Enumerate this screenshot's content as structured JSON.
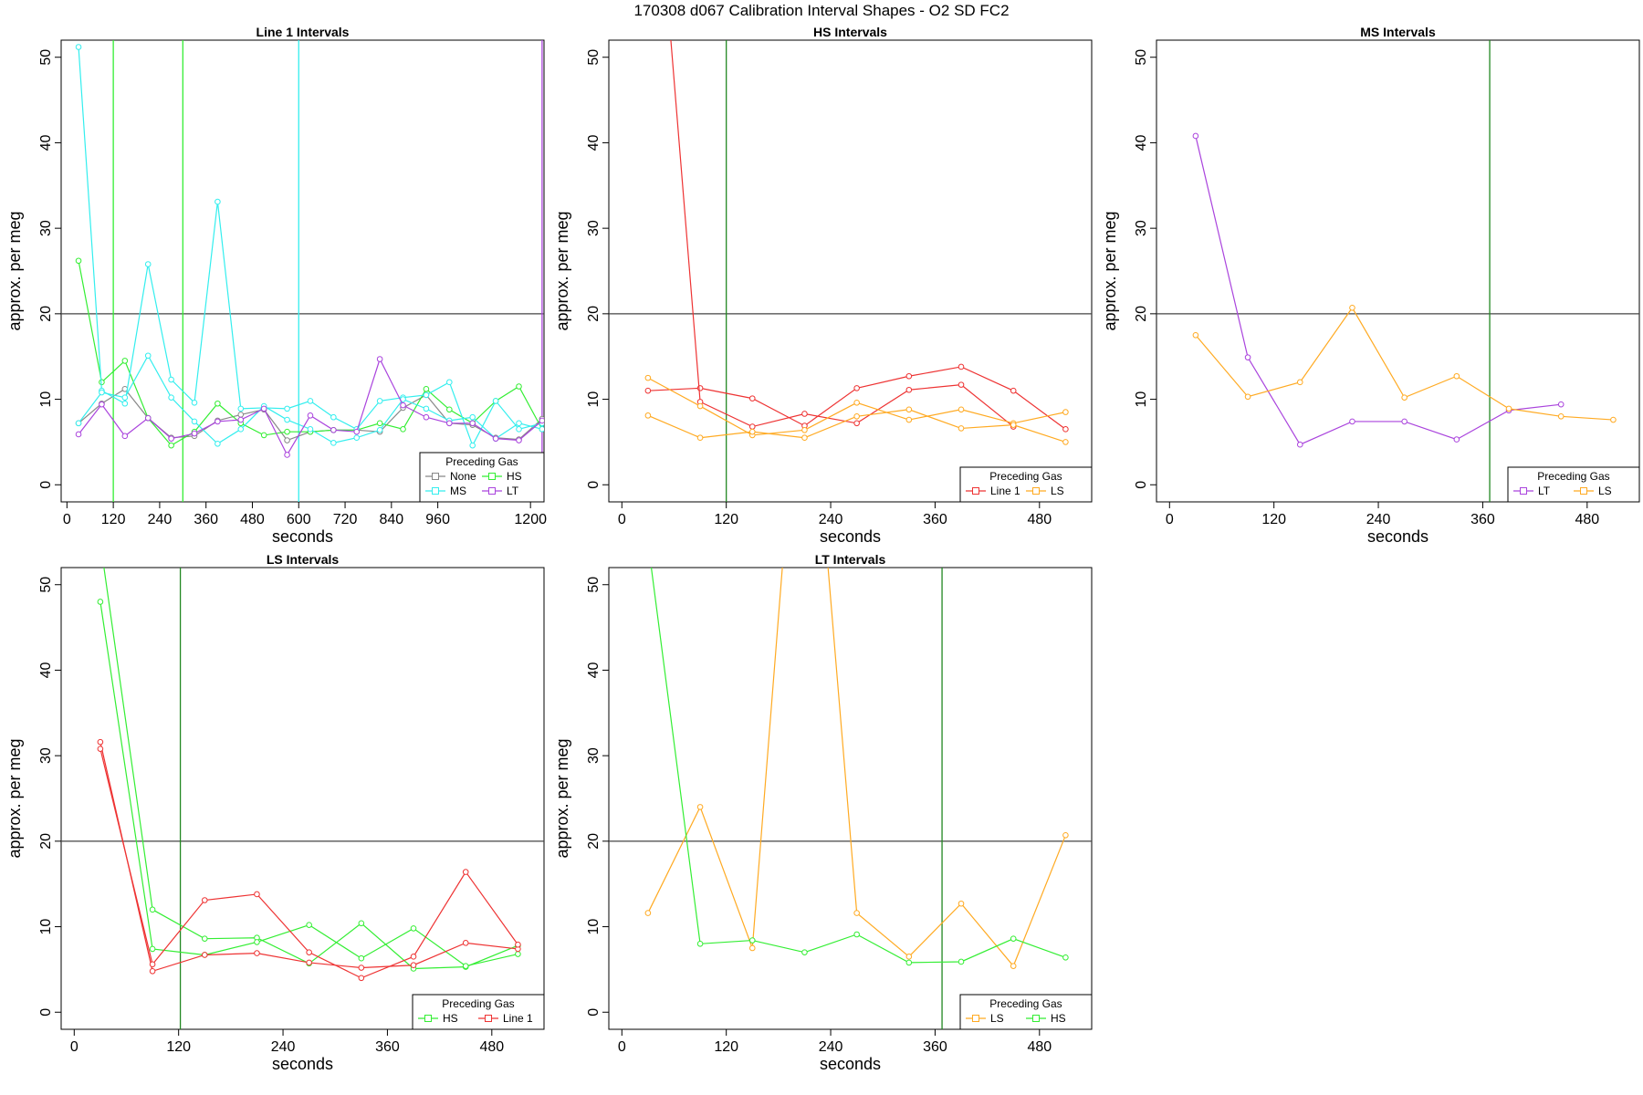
{
  "page_title": "170308   d067   Calibration Interval Shapes - O2 SD FC2",
  "colors": {
    "None": "#888888",
    "HS": "#33ee33",
    "MS": "#33eeee",
    "LT": "#aa44dd",
    "Line 1": "#ee3333",
    "LS": "#ffaa22",
    "vline_dark": "#228822",
    "ref_line": "#444444"
  },
  "chart_data": [
    {
      "type": "line",
      "title": "Line 1 Intervals",
      "xlabel": "seconds",
      "ylabel": "approx. per meg",
      "xlim": [
        -15,
        1235
      ],
      "ylim": [
        -2,
        52
      ],
      "xticks": [
        0,
        120,
        240,
        360,
        480,
        600,
        720,
        840,
        960,
        1200
      ],
      "yticks": [
        0,
        10,
        20,
        30,
        40,
        50
      ],
      "hline": 20,
      "vlines": [
        {
          "x": 120,
          "color": "HS"
        },
        {
          "x": 300,
          "color": "HS"
        },
        {
          "x": 600,
          "color": "MS"
        },
        {
          "x": 1230,
          "color": "LT"
        }
      ],
      "legend": {
        "title": "Preceding Gas",
        "position": "bottom-right",
        "columns": 2,
        "entries": [
          "None",
          "HS",
          "MS",
          "LT"
        ]
      },
      "series": [
        {
          "name": "None",
          "color": "None",
          "x": [
            30,
            90,
            150,
            210,
            270,
            330,
            390,
            450,
            510,
            570,
            630,
            690,
            750,
            810,
            870,
            930,
            990,
            1050,
            1110,
            1170,
            1230
          ],
          "y": [
            7.2,
            9.5,
            11.2,
            7.8,
            5.5,
            5.7,
            7.5,
            8.2,
            8.8,
            5.2,
            6.2,
            6.4,
            6.4,
            6.2,
            9.0,
            10.5,
            7.2,
            7.0,
            5.5,
            5.3,
            7.7
          ]
        },
        {
          "name": "HS",
          "color": "HS",
          "x": [
            30,
            90,
            150,
            210,
            270,
            330,
            390,
            450,
            510,
            570,
            630,
            690,
            750,
            810,
            870,
            930,
            990,
            1050,
            1110,
            1170,
            1230
          ],
          "y": [
            26.2,
            12.0,
            14.5,
            7.8,
            4.6,
            6.2,
            9.5,
            7.2,
            5.8,
            6.2,
            6.2,
            6.4,
            6.4,
            7.2,
            6.5,
            11.2,
            8.8,
            7.2,
            9.8,
            11.5,
            6.5
          ]
        },
        {
          "name": "MS",
          "color": "MS",
          "x": [
            30,
            90,
            150,
            210,
            270,
            330,
            390,
            450,
            510,
            570,
            630,
            690,
            750,
            810,
            870,
            930,
            990,
            1050,
            1110,
            1170,
            1230
          ],
          "y": [
            51.2,
            11.0,
            9.5,
            25.8,
            12.3,
            9.6,
            33.1,
            8.9,
            9.0,
            8.9,
            9.8,
            7.9,
            6.5,
            9.8,
            10.2,
            10.5,
            12.0,
            4.6,
            9.8,
            6.5,
            7.2
          ]
        },
        {
          "name": "MS",
          "color": "MS",
          "x": [
            30,
            90,
            150,
            210,
            270,
            330,
            390,
            450,
            510,
            570,
            630,
            690,
            750,
            810,
            870,
            930,
            990,
            1050,
            1110,
            1170,
            1230
          ],
          "y": [
            7.2,
            10.8,
            10.2,
            15.1,
            10.2,
            7.4,
            4.8,
            6.5,
            9.2,
            7.6,
            6.5,
            4.9,
            5.5,
            6.4,
            10.0,
            8.9,
            7.5,
            7.9,
            5.4,
            7.2,
            6.5
          ]
        },
        {
          "name": "LT",
          "color": "LT",
          "x": [
            30,
            90,
            150,
            210,
            270,
            330,
            390,
            450,
            510,
            570,
            630,
            690,
            750,
            810,
            870,
            930,
            990,
            1050,
            1110,
            1170,
            1230
          ],
          "y": [
            5.9,
            9.4,
            5.7,
            7.8,
            5.4,
            6.0,
            7.4,
            7.6,
            8.9,
            3.5,
            8.1,
            6.4,
            6.2,
            14.7,
            9.3,
            7.9,
            7.2,
            7.2,
            5.4,
            5.2,
            7.5
          ]
        }
      ]
    },
    {
      "type": "line",
      "title": "HS Intervals",
      "xlabel": "seconds",
      "ylabel": "approx. per meg",
      "xlim": [
        -15,
        540
      ],
      "ylim": [
        -2,
        52
      ],
      "xticks": [
        0,
        120,
        240,
        360,
        480
      ],
      "yticks": [
        0,
        10,
        20,
        30,
        40,
        50
      ],
      "hline": 20,
      "vlines": [
        {
          "x": 120,
          "color": "vline_dark"
        }
      ],
      "legend": {
        "title": "Preceding Gas",
        "position": "bottom-right",
        "columns": 2,
        "entries": [
          "Line 1",
          "LS"
        ]
      },
      "series": [
        {
          "name": "Line 1",
          "color": "Line 1",
          "x": [
            30,
            90,
            150,
            210,
            270,
            330,
            390,
            450,
            510
          ],
          "y": [
            11.0,
            11.3,
            10.1,
            6.9,
            11.3,
            12.7,
            13.8,
            11.0,
            6.5
          ]
        },
        {
          "name": "Line 1",
          "color": "Line 1",
          "x": [
            30,
            90,
            150,
            210,
            270,
            330,
            390,
            450
          ],
          "y": [
            85,
            9.7,
            6.8,
            8.3,
            7.2,
            11.1,
            11.7,
            6.8
          ]
        },
        {
          "name": "LS",
          "color": "LS",
          "x": [
            30,
            90,
            150,
            210,
            270,
            330,
            390,
            450,
            510
          ],
          "y": [
            12.5,
            9.2,
            5.8,
            6.4,
            9.6,
            7.6,
            8.8,
            7.2,
            8.5
          ]
        },
        {
          "name": "LS",
          "color": "LS",
          "x": [
            30,
            90,
            150,
            210,
            270,
            330,
            390,
            450,
            510
          ],
          "y": [
            8.1,
            5.5,
            6.2,
            5.5,
            8.0,
            8.8,
            6.6,
            7.0,
            5.0
          ]
        }
      ]
    },
    {
      "type": "line",
      "title": "MS Intervals",
      "xlabel": "seconds",
      "ylabel": "approx. per meg",
      "xlim": [
        -15,
        540
      ],
      "ylim": [
        -2,
        52
      ],
      "xticks": [
        0,
        120,
        240,
        360,
        480
      ],
      "yticks": [
        0,
        10,
        20,
        30,
        40,
        50
      ],
      "hline": 20,
      "vlines": [
        {
          "x": 368,
          "color": "vline_dark"
        }
      ],
      "legend": {
        "title": "Preceding Gas",
        "position": "bottom-right",
        "columns": 2,
        "entries": [
          "LT",
          "LS"
        ]
      },
      "series": [
        {
          "name": "LT",
          "color": "LT",
          "x": [
            30,
            90,
            150,
            210,
            270,
            330,
            390,
            450
          ],
          "y": [
            40.8,
            14.9,
            4.7,
            7.4,
            7.4,
            5.3,
            8.7,
            9.4
          ]
        },
        {
          "name": "LS",
          "color": "LS",
          "x": [
            30,
            90,
            150,
            210,
            270,
            330,
            390,
            450,
            510
          ],
          "y": [
            17.5,
            10.3,
            12.0,
            20.7,
            10.2,
            12.7,
            8.9,
            8.0,
            7.6
          ]
        }
      ]
    },
    {
      "type": "line",
      "title": "LS Intervals",
      "xlabel": "seconds",
      "ylabel": "approx. per meg",
      "xlim": [
        -15,
        540
      ],
      "ylim": [
        -2,
        52
      ],
      "xticks": [
        0,
        120,
        240,
        360,
        480
      ],
      "yticks": [
        0,
        10,
        20,
        30,
        40,
        50
      ],
      "hline": 20,
      "vlines": [
        {
          "x": 122,
          "color": "vline_dark"
        }
      ],
      "legend": {
        "title": "Preceding Gas",
        "position": "bottom-right",
        "columns": 2,
        "entries": [
          "HS",
          "Line 1"
        ]
      },
      "series": [
        {
          "name": "HS",
          "color": "HS",
          "x": [
            30,
            90,
            150,
            210,
            270,
            330,
            390,
            450,
            510
          ],
          "y": [
            55,
            12.0,
            8.6,
            8.7,
            5.7,
            10.4,
            5.1,
            5.3,
            7.8
          ]
        },
        {
          "name": "HS",
          "color": "HS",
          "x": [
            30,
            90,
            150,
            210,
            270,
            330,
            390,
            450,
            510
          ],
          "y": [
            48.0,
            7.4,
            6.7,
            8.2,
            10.2,
            6.3,
            9.8,
            5.4,
            6.8
          ]
        },
        {
          "name": "Line 1",
          "color": "Line 1",
          "x": [
            30,
            90,
            150,
            210,
            270,
            330,
            390,
            450,
            510
          ],
          "y": [
            31.6,
            4.8,
            6.7,
            6.9,
            5.8,
            5.2,
            5.5,
            8.1,
            7.4
          ]
        },
        {
          "name": "Line 1",
          "color": "Line 1",
          "x": [
            30,
            90,
            150,
            210,
            270,
            330,
            390,
            450,
            510
          ],
          "y": [
            30.8,
            5.6,
            13.1,
            13.8,
            7.0,
            4.0,
            6.5,
            16.4,
            7.9
          ]
        }
      ]
    },
    {
      "type": "line",
      "title": "LT Intervals",
      "xlabel": "seconds",
      "ylabel": "approx. per meg",
      "xlim": [
        -15,
        540
      ],
      "ylim": [
        -2,
        52
      ],
      "xticks": [
        0,
        120,
        240,
        360,
        480
      ],
      "yticks": [
        0,
        10,
        20,
        30,
        40,
        50
      ],
      "hline": 20,
      "vlines": [
        {
          "x": 368,
          "color": "vline_dark"
        }
      ],
      "legend": {
        "title": "Preceding Gas",
        "position": "bottom-right",
        "columns": 2,
        "entries": [
          "LS",
          "HS"
        ]
      },
      "series": [
        {
          "name": "LS",
          "color": "LS",
          "x": [
            30,
            90,
            150,
            210,
            270,
            330,
            390,
            450,
            510
          ],
          "y": [
            11.6,
            24.0,
            7.5,
            85,
            11.6,
            6.5,
            12.7,
            5.4,
            20.7
          ]
        },
        {
          "name": "HS",
          "color": "HS",
          "x": [
            30,
            90,
            150,
            210,
            270,
            330,
            390,
            450,
            510
          ],
          "y": [
            55,
            8.0,
            8.4,
            7.0,
            9.1,
            5.8,
            5.9,
            8.6,
            6.4
          ]
        }
      ]
    }
  ]
}
